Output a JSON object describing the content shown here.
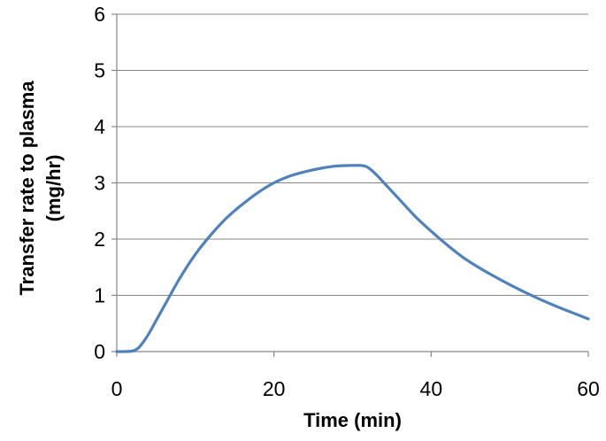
{
  "chart_data": {
    "type": "line",
    "title": "",
    "xlabel": "Time (min)",
    "ylabel_lines": [
      "Transfer rate to plasma",
      "(mg/hr)"
    ],
    "xlim": [
      0,
      60
    ],
    "ylim": [
      0,
      6
    ],
    "xticks": [
      0,
      20,
      40,
      60
    ],
    "yticks": [
      0,
      1,
      2,
      3,
      4,
      5,
      6
    ],
    "grid": true,
    "legend": "none",
    "series": [
      {
        "color": "#4f81bd",
        "x": [
          0,
          1,
          2,
          2.5,
          3,
          4,
          5,
          6,
          8,
          10,
          12,
          14,
          16,
          18,
          20,
          22,
          24,
          26,
          28,
          30,
          31,
          31.5,
          32,
          33,
          34,
          36,
          38,
          40,
          42,
          44,
          46,
          48,
          50,
          52,
          54,
          56,
          58,
          60
        ],
        "y": [
          0,
          0,
          0.01,
          0.04,
          0.1,
          0.3,
          0.55,
          0.8,
          1.3,
          1.73,
          2.08,
          2.38,
          2.62,
          2.83,
          3.0,
          3.12,
          3.2,
          3.26,
          3.3,
          3.31,
          3.31,
          3.3,
          3.27,
          3.15,
          3.0,
          2.7,
          2.4,
          2.14,
          1.9,
          1.68,
          1.5,
          1.34,
          1.19,
          1.05,
          0.92,
          0.8,
          0.69,
          0.58
        ]
      }
    ]
  }
}
